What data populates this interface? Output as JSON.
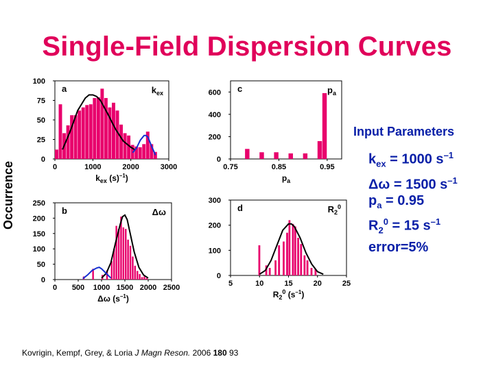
{
  "slide": {
    "title": "Single-Field Dispersion Curves",
    "y_label": "Occurrence",
    "params_header": "Input Parameters",
    "params": [
      {
        "name": "k",
        "sub": "ex",
        "value": " = 1000 s",
        "sup": "–1"
      },
      {
        "name": "Δω",
        "sub": "",
        "value": " = 1500 s",
        "sup": "–1"
      },
      {
        "name": "p",
        "sub": "a",
        "value": " = 0.95",
        "sup": ""
      },
      {
        "name": "R",
        "sub": "2",
        "sup0": "0",
        "value": " = 15 s",
        "sup": "–1"
      },
      {
        "name": "error=5%",
        "sub": "",
        "value": "",
        "sup": ""
      }
    ],
    "citation": {
      "authors": "Kovrigin, Kempf, Grey, & Loria ",
      "journal": "J Magn Reson.",
      "year": " 2006 ",
      "volume": "180",
      "page": " 93"
    },
    "colors": {
      "title": "#e0005a",
      "bars": "#e8006c",
      "fit_black": "#000000",
      "fit_blue": "#1630d0",
      "params": "#0a20a8"
    }
  },
  "chart_data": [
    {
      "type": "bar",
      "panel_label": "a",
      "corner_label": "kex",
      "xlabel": "kex (s–1)",
      "xlim": [
        0,
        3000
      ],
      "ylim": [
        0,
        100
      ],
      "xticks": [
        "0",
        "1000",
        "2000",
        "3000"
      ],
      "yticks": [
        "0",
        "25",
        "50",
        "75",
        "100"
      ],
      "bin_width": 100,
      "bin_starts": [
        0,
        100,
        200,
        300,
        400,
        500,
        600,
        700,
        800,
        900,
        1000,
        1100,
        1200,
        1300,
        1400,
        1500,
        1600,
        1700,
        1800,
        1900,
        2000,
        2100,
        2200,
        2300,
        2400,
        2500,
        2600
      ],
      "values": [
        12,
        70,
        33,
        43,
        56,
        56,
        62,
        66,
        69,
        70,
        78,
        79,
        90,
        78,
        66,
        72,
        62,
        44,
        33,
        30,
        18,
        16,
        15,
        19,
        35,
        19,
        9
      ],
      "fits": [
        {
          "color": "black",
          "x": [
            200,
            400,
            600,
            800,
            900,
            1000,
            1100,
            1200,
            1400,
            1600,
            1800,
            2000,
            2100
          ],
          "y": [
            12,
            35,
            62,
            78,
            82,
            82,
            80,
            75,
            57,
            38,
            23,
            15,
            12
          ]
        },
        {
          "color": "blue",
          "x": [
            2050,
            2150,
            2250,
            2350,
            2400,
            2450,
            2550,
            2650
          ],
          "y": [
            8,
            14,
            24,
            30,
            30,
            28,
            16,
            5
          ]
        }
      ]
    },
    {
      "type": "bar",
      "panel_label": "c",
      "corner_label": "pa",
      "xlabel": "pa",
      "xlim": [
        0.75,
        0.98
      ],
      "ylim": [
        0,
        700
      ],
      "xticks": [
        "0.75",
        "0.85",
        "0.95"
      ],
      "yticks": [
        "0",
        "200",
        "400",
        "600"
      ],
      "bin_width": 0.01,
      "bin_starts": [
        0.78,
        0.81,
        0.84,
        0.87,
        0.9,
        0.93,
        0.94
      ],
      "values": [
        90,
        60,
        60,
        50,
        50,
        160,
        590
      ]
    },
    {
      "type": "bar",
      "panel_label": "b",
      "corner_label": "Δω",
      "xlabel": "Δω (s–1)",
      "xlim": [
        0,
        2500
      ],
      "ylim": [
        0,
        250
      ],
      "xticks": [
        "0",
        "500",
        "1000",
        "1500",
        "2000",
        "2500"
      ],
      "yticks": [
        "0",
        "50",
        "100",
        "150",
        "200",
        "250"
      ],
      "bin_width": 45,
      "bin_starts": [
        600,
        800,
        1000,
        1100,
        1200,
        1250,
        1300,
        1350,
        1400,
        1450,
        1500,
        1550,
        1600,
        1650,
        1700,
        1750,
        1800,
        1850,
        1900,
        1950
      ],
      "values": [
        10,
        35,
        15,
        30,
        60,
        100,
        175,
        165,
        205,
        170,
        165,
        130,
        110,
        75,
        45,
        28,
        18,
        8,
        10,
        5
      ],
      "fits": [
        {
          "color": "black",
          "x": [
            1000,
            1100,
            1200,
            1300,
            1400,
            1450,
            1500,
            1550,
            1600,
            1700,
            1800,
            1900,
            2000
          ],
          "y": [
            5,
            20,
            55,
            120,
            180,
            205,
            210,
            195,
            160,
            90,
            40,
            15,
            5
          ]
        },
        {
          "color": "blue",
          "x": [
            600,
            700,
            800,
            900,
            950,
            1000,
            1100,
            1200
          ],
          "y": [
            3,
            15,
            30,
            38,
            40,
            35,
            20,
            5
          ]
        }
      ]
    },
    {
      "type": "bar",
      "panel_label": "d",
      "corner_label": "R20",
      "xlabel": "R20 (s–1)",
      "xlim": [
        5,
        25
      ],
      "ylim": [
        0,
        300
      ],
      "xticks": [
        "5",
        "10",
        "15",
        "20",
        "25"
      ],
      "yticks": [
        "0",
        "100",
        "200",
        "300"
      ],
      "bin_width": 0.4,
      "bin_starts": [
        9.8,
        11,
        11.6,
        12.6,
        13.2,
        14,
        14.6,
        15,
        15.6,
        16,
        16.5,
        17,
        17.6,
        18.1,
        18.8,
        19.5
      ],
      "values": [
        120,
        40,
        30,
        60,
        120,
        135,
        170,
        220,
        205,
        195,
        150,
        125,
        80,
        60,
        30,
        25
      ],
      "fits": [
        {
          "color": "black",
          "x": [
            10,
            11,
            12,
            13,
            14,
            15,
            15.5,
            16,
            17,
            18,
            19,
            20,
            21
          ],
          "y": [
            5,
            20,
            60,
            120,
            180,
            205,
            205,
            195,
            150,
            90,
            45,
            15,
            5
          ]
        }
      ]
    }
  ]
}
